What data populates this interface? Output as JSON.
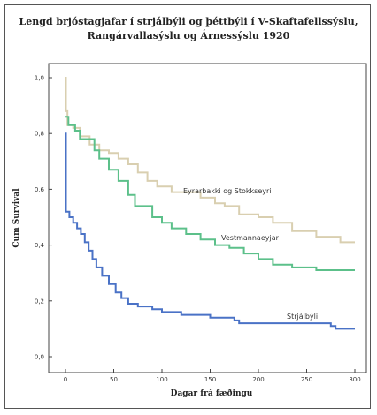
{
  "chart_data": {
    "type": "line",
    "title": "Lengd brjóstagjafar í strjálbýli og þéttbýli í V-Skaftafellssýslu,",
    "subtitle": "Rangárvallasýslu og Árnessýslu 1920",
    "xlabel": "Dagar frá fæðingu",
    "ylabel": "Cum Survival",
    "xlim": [
      0,
      300
    ],
    "ylim": [
      0,
      1.0
    ],
    "x_ticks": [
      "0",
      "50",
      "100",
      "150",
      "200",
      "250",
      "300"
    ],
    "y_ticks": [
      "0,0",
      "0,2",
      "0,4",
      "0,6",
      "0,8",
      "1,0"
    ],
    "step": true,
    "series": [
      {
        "name": "Eyrarbakki og Stokkseyri",
        "color": "#d9cfb0",
        "points": [
          [
            0,
            1.0
          ],
          [
            0.5,
            0.88
          ],
          [
            2,
            0.83
          ],
          [
            8,
            0.82
          ],
          [
            15,
            0.79
          ],
          [
            25,
            0.76
          ],
          [
            35,
            0.74
          ],
          [
            45,
            0.73
          ],
          [
            55,
            0.71
          ],
          [
            65,
            0.69
          ],
          [
            75,
            0.66
          ],
          [
            85,
            0.63
          ],
          [
            95,
            0.61
          ],
          [
            110,
            0.59
          ],
          [
            130,
            0.59
          ],
          [
            140,
            0.57
          ],
          [
            155,
            0.55
          ],
          [
            165,
            0.54
          ],
          [
            180,
            0.51
          ],
          [
            200,
            0.5
          ],
          [
            215,
            0.48
          ],
          [
            235,
            0.45
          ],
          [
            260,
            0.43
          ],
          [
            285,
            0.41
          ],
          [
            300,
            0.41
          ]
        ]
      },
      {
        "name": "Vestmannaeyjar",
        "color": "#5cc08a",
        "points": [
          [
            0,
            0.86
          ],
          [
            3,
            0.83
          ],
          [
            10,
            0.81
          ],
          [
            15,
            0.78
          ],
          [
            30,
            0.74
          ],
          [
            35,
            0.71
          ],
          [
            45,
            0.67
          ],
          [
            55,
            0.63
          ],
          [
            65,
            0.58
          ],
          [
            72,
            0.54
          ],
          [
            90,
            0.5
          ],
          [
            100,
            0.48
          ],
          [
            110,
            0.46
          ],
          [
            125,
            0.44
          ],
          [
            140,
            0.42
          ],
          [
            155,
            0.4
          ],
          [
            170,
            0.39
          ],
          [
            185,
            0.37
          ],
          [
            200,
            0.35
          ],
          [
            215,
            0.33
          ],
          [
            235,
            0.32
          ],
          [
            260,
            0.31
          ],
          [
            300,
            0.31
          ]
        ]
      },
      {
        "name": "Strjálbýli",
        "color": "#4a72c6",
        "points": [
          [
            0,
            0.8
          ],
          [
            0.5,
            0.52
          ],
          [
            4,
            0.5
          ],
          [
            8,
            0.48
          ],
          [
            12,
            0.46
          ],
          [
            16,
            0.44
          ],
          [
            20,
            0.41
          ],
          [
            24,
            0.38
          ],
          [
            28,
            0.35
          ],
          [
            32,
            0.32
          ],
          [
            38,
            0.29
          ],
          [
            45,
            0.26
          ],
          [
            52,
            0.23
          ],
          [
            58,
            0.21
          ],
          [
            65,
            0.19
          ],
          [
            75,
            0.18
          ],
          [
            90,
            0.17
          ],
          [
            100,
            0.16
          ],
          [
            120,
            0.15
          ],
          [
            150,
            0.14
          ],
          [
            175,
            0.13
          ],
          [
            180,
            0.12
          ],
          [
            250,
            0.12
          ],
          [
            275,
            0.11
          ],
          [
            280,
            0.1
          ],
          [
            300,
            0.1
          ]
        ]
      }
    ]
  }
}
